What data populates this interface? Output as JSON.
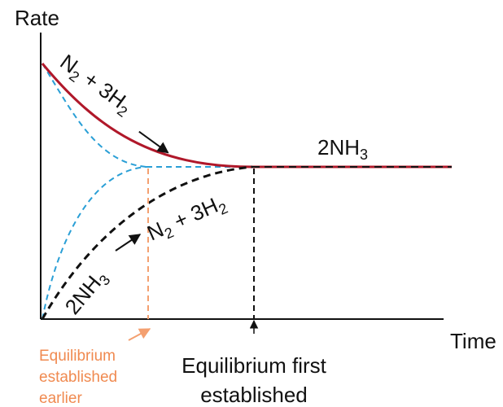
{
  "axes": {
    "y_label": "Rate",
    "x_label": "Time"
  },
  "forward_reaction": {
    "parts": [
      "N",
      "2",
      " + 3H",
      "2"
    ]
  },
  "equilibrium_product": {
    "parts": [
      "2NH",
      "3"
    ]
  },
  "reverse_reaction": {
    "reactant_parts": [
      "2NH",
      "3"
    ],
    "product_parts": [
      "N",
      "2",
      " + 3H",
      "2"
    ]
  },
  "annotations": {
    "catalyzed": [
      "Equilibrium",
      "established",
      "earlier"
    ],
    "uncatalyzed": [
      "Equilibrium first",
      "established"
    ]
  }
}
